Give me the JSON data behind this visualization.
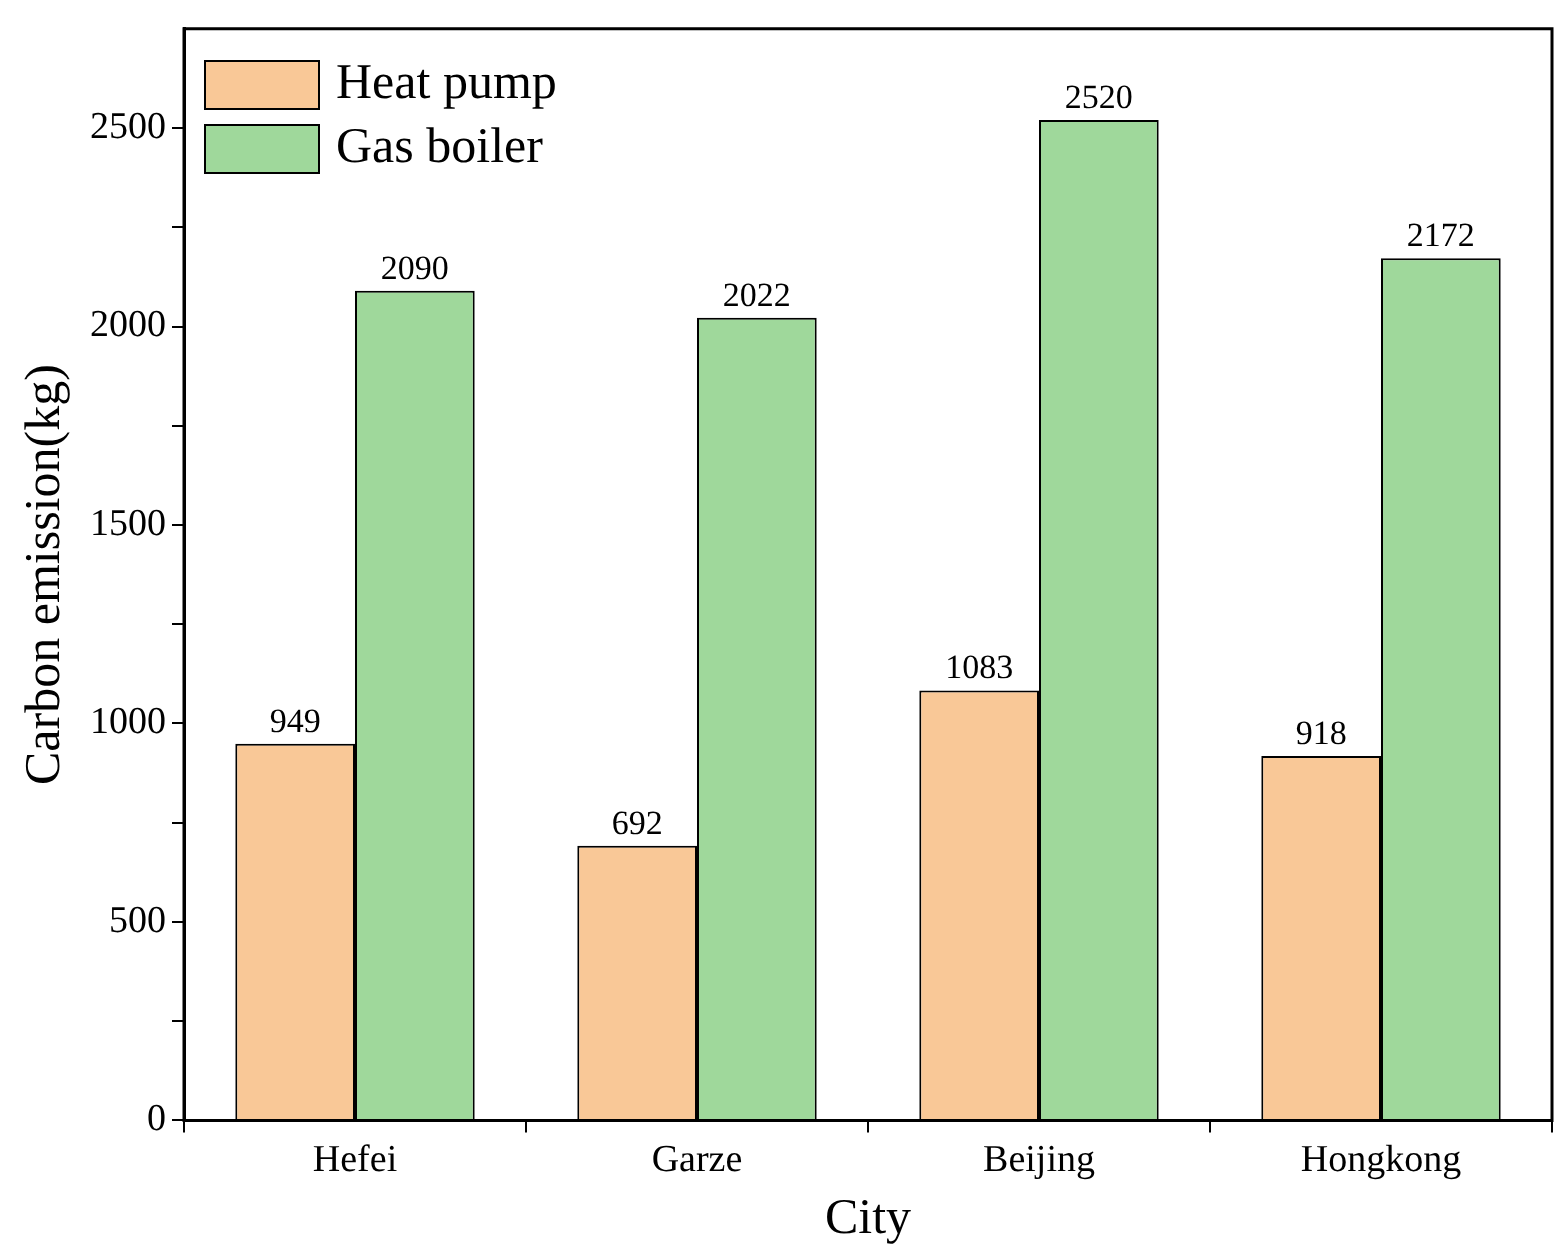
{
  "chart_data": {
    "type": "bar",
    "xlabel": "City",
    "ylabel": "Carbon emission(kg)",
    "categories": [
      "Hefei",
      "Garze",
      "Beijing",
      "Hongkong"
    ],
    "series": [
      {
        "name": "Heat pump",
        "color": "#f9c897",
        "values": [
          949,
          692,
          1083,
          918
        ]
      },
      {
        "name": "Gas boiler",
        "color": "#9fd89b",
        "values": [
          2090,
          2022,
          2520,
          2172
        ]
      }
    ],
    "ylim": [
      0,
      2750
    ],
    "yticks": [
      0,
      {
        "value": 250,
        "label": null
      },
      500,
      {
        "value": 750,
        "label": null
      },
      1000,
      {
        "value": 1250,
        "label": null
      },
      1500,
      {
        "value": 1750,
        "label": null
      },
      2000,
      {
        "value": 2250,
        "label": null
      },
      2500
    ],
    "grid": false,
    "legend": "top left",
    "data_labels": true
  }
}
